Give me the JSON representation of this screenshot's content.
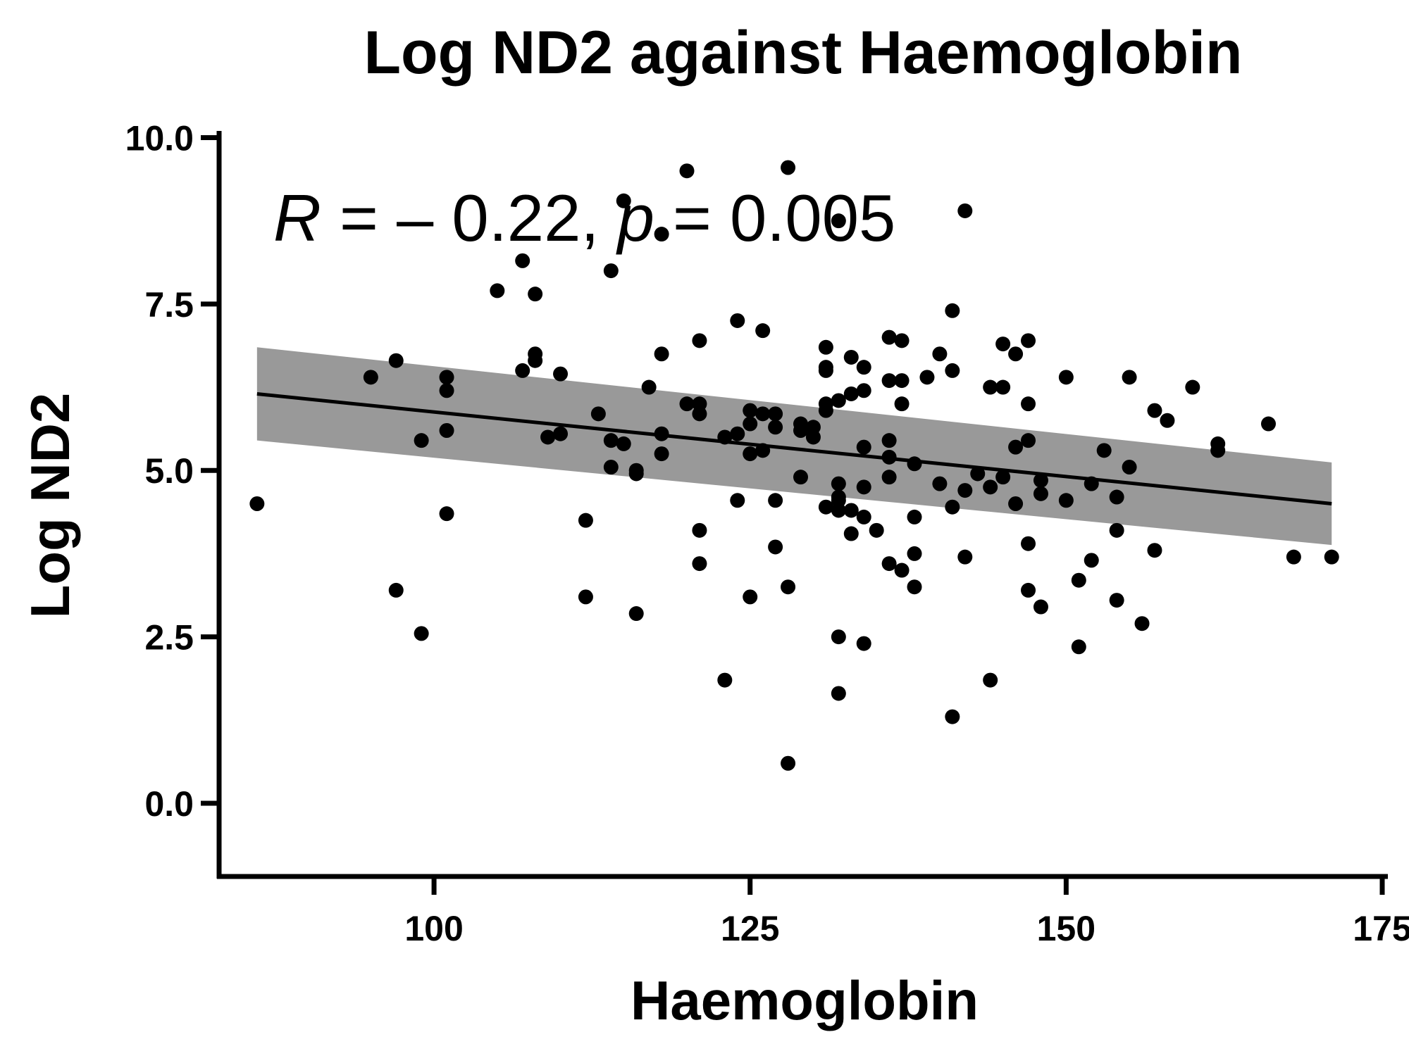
{
  "chart_data": {
    "type": "scatter",
    "title": "Log ND2 against Haemoglobin",
    "xlabel": "Haemoglobin",
    "ylabel": "Log ND2",
    "xlim": [
      83,
      175
    ],
    "ylim": [
      -1.1,
      10.1
    ],
    "x_ticks": [
      100,
      125,
      150,
      175
    ],
    "y_ticks": [
      0.0,
      2.5,
      5.0,
      7.5,
      10.0
    ],
    "x_tick_labels": [
      "100",
      "125",
      "150",
      "175"
    ],
    "y_tick_labels": [
      "0.0",
      "2.5",
      "5.0",
      "7.5",
      "10.0"
    ],
    "annotation": {
      "r_symbol": "R",
      "r_text": " = – 0.22, ",
      "p_symbol": "p",
      "p_text": " = 0.005"
    },
    "grid": false,
    "colors": {
      "points": "#000000",
      "line": "#000000",
      "band": "#999999"
    },
    "regression": {
      "x": [
        86,
        171
      ],
      "y": [
        6.15,
        4.5
      ],
      "ci_upper": [
        6.85,
        5.12
      ],
      "ci_lower": [
        5.45,
        3.88
      ]
    },
    "points": [
      [
        86,
        4.5
      ],
      [
        95,
        6.4
      ],
      [
        97,
        6.65
      ],
      [
        97,
        3.2
      ],
      [
        99,
        5.45
      ],
      [
        99,
        2.55
      ],
      [
        101,
        6.4
      ],
      [
        101,
        6.2
      ],
      [
        101,
        5.6
      ],
      [
        101,
        4.35
      ],
      [
        105,
        7.7
      ],
      [
        107,
        8.15
      ],
      [
        107,
        6.5
      ],
      [
        108,
        7.65
      ],
      [
        108,
        6.75
      ],
      [
        108,
        6.65
      ],
      [
        109,
        5.5
      ],
      [
        110,
        6.45
      ],
      [
        110,
        5.55
      ],
      [
        112,
        4.25
      ],
      [
        112,
        3.1
      ],
      [
        113,
        5.85
      ],
      [
        114,
        8.0
      ],
      [
        114,
        5.45
      ],
      [
        114,
        5.05
      ],
      [
        115,
        9.05
      ],
      [
        115,
        5.4
      ],
      [
        116,
        5.0
      ],
      [
        116,
        4.95
      ],
      [
        116,
        2.85
      ],
      [
        117,
        6.25
      ],
      [
        118,
        8.55
      ],
      [
        118,
        6.75
      ],
      [
        118,
        5.55
      ],
      [
        118,
        5.25
      ],
      [
        120,
        9.5
      ],
      [
        120,
        6.0
      ],
      [
        121,
        6.95
      ],
      [
        121,
        6.0
      ],
      [
        121,
        5.85
      ],
      [
        121,
        4.1
      ],
      [
        121,
        3.6
      ],
      [
        123,
        5.5
      ],
      [
        123,
        1.85
      ],
      [
        124,
        7.25
      ],
      [
        124,
        5.55
      ],
      [
        124,
        4.55
      ],
      [
        125,
        5.9
      ],
      [
        125,
        5.7
      ],
      [
        125,
        5.25
      ],
      [
        125,
        3.1
      ],
      [
        126,
        7.1
      ],
      [
        126,
        5.85
      ],
      [
        126,
        5.3
      ],
      [
        127,
        5.85
      ],
      [
        127,
        5.65
      ],
      [
        127,
        4.55
      ],
      [
        127,
        3.85
      ],
      [
        128,
        9.55
      ],
      [
        128,
        3.25
      ],
      [
        128,
        0.6
      ],
      [
        129,
        4.9
      ],
      [
        129,
        5.7
      ],
      [
        129,
        5.6
      ],
      [
        130,
        5.65
      ],
      [
        130,
        5.5
      ],
      [
        131,
        6.85
      ],
      [
        131,
        6.55
      ],
      [
        131,
        6.5
      ],
      [
        131,
        6.0
      ],
      [
        131,
        5.9
      ],
      [
        131,
        4.45
      ],
      [
        132,
        8.75
      ],
      [
        132,
        6.05
      ],
      [
        132,
        4.8
      ],
      [
        132,
        4.6
      ],
      [
        132,
        4.55
      ],
      [
        132,
        4.4
      ],
      [
        132,
        2.5
      ],
      [
        132,
        1.65
      ],
      [
        133,
        6.7
      ],
      [
        133,
        6.15
      ],
      [
        133,
        4.4
      ],
      [
        133,
        4.05
      ],
      [
        134,
        6.55
      ],
      [
        134,
        6.2
      ],
      [
        134,
        5.35
      ],
      [
        134,
        4.75
      ],
      [
        134,
        4.3
      ],
      [
        134,
        2.4
      ],
      [
        135,
        4.1
      ],
      [
        136,
        7.0
      ],
      [
        136,
        6.35
      ],
      [
        136,
        5.45
      ],
      [
        136,
        5.2
      ],
      [
        136,
        4.9
      ],
      [
        136,
        3.6
      ],
      [
        137,
        6.95
      ],
      [
        137,
        6.35
      ],
      [
        137,
        6.0
      ],
      [
        137,
        3.5
      ],
      [
        138,
        5.1
      ],
      [
        138,
        4.3
      ],
      [
        138,
        3.75
      ],
      [
        138,
        3.25
      ],
      [
        139,
        6.4
      ],
      [
        140,
        6.75
      ],
      [
        140,
        4.8
      ],
      [
        141,
        7.4
      ],
      [
        141,
        6.5
      ],
      [
        141,
        4.45
      ],
      [
        141,
        1.3
      ],
      [
        142,
        8.9
      ],
      [
        142,
        4.7
      ],
      [
        142,
        3.7
      ],
      [
        143,
        4.95
      ],
      [
        144,
        6.25
      ],
      [
        144,
        4.75
      ],
      [
        144,
        1.85
      ],
      [
        145,
        6.25
      ],
      [
        145,
        4.9
      ],
      [
        145,
        6.9
      ],
      [
        146,
        6.75
      ],
      [
        146,
        5.35
      ],
      [
        146,
        4.5
      ],
      [
        147,
        6.95
      ],
      [
        147,
        6.0
      ],
      [
        147,
        5.45
      ],
      [
        147,
        3.9
      ],
      [
        147,
        3.2
      ],
      [
        148,
        4.85
      ],
      [
        148,
        4.65
      ],
      [
        148,
        2.95
      ],
      [
        150,
        6.4
      ],
      [
        150,
        4.55
      ],
      [
        151,
        3.35
      ],
      [
        151,
        2.35
      ],
      [
        152,
        4.8
      ],
      [
        152,
        3.65
      ],
      [
        153,
        5.3
      ],
      [
        154,
        4.6
      ],
      [
        154,
        4.1
      ],
      [
        154,
        3.05
      ],
      [
        155,
        6.4
      ],
      [
        155,
        5.05
      ],
      [
        156,
        2.7
      ],
      [
        157,
        5.9
      ],
      [
        157,
        3.8
      ],
      [
        158,
        5.75
      ],
      [
        160,
        6.25
      ],
      [
        162,
        5.4
      ],
      [
        162,
        5.3
      ],
      [
        166,
        5.7
      ],
      [
        168,
        3.7
      ],
      [
        171,
        3.7
      ]
    ]
  }
}
